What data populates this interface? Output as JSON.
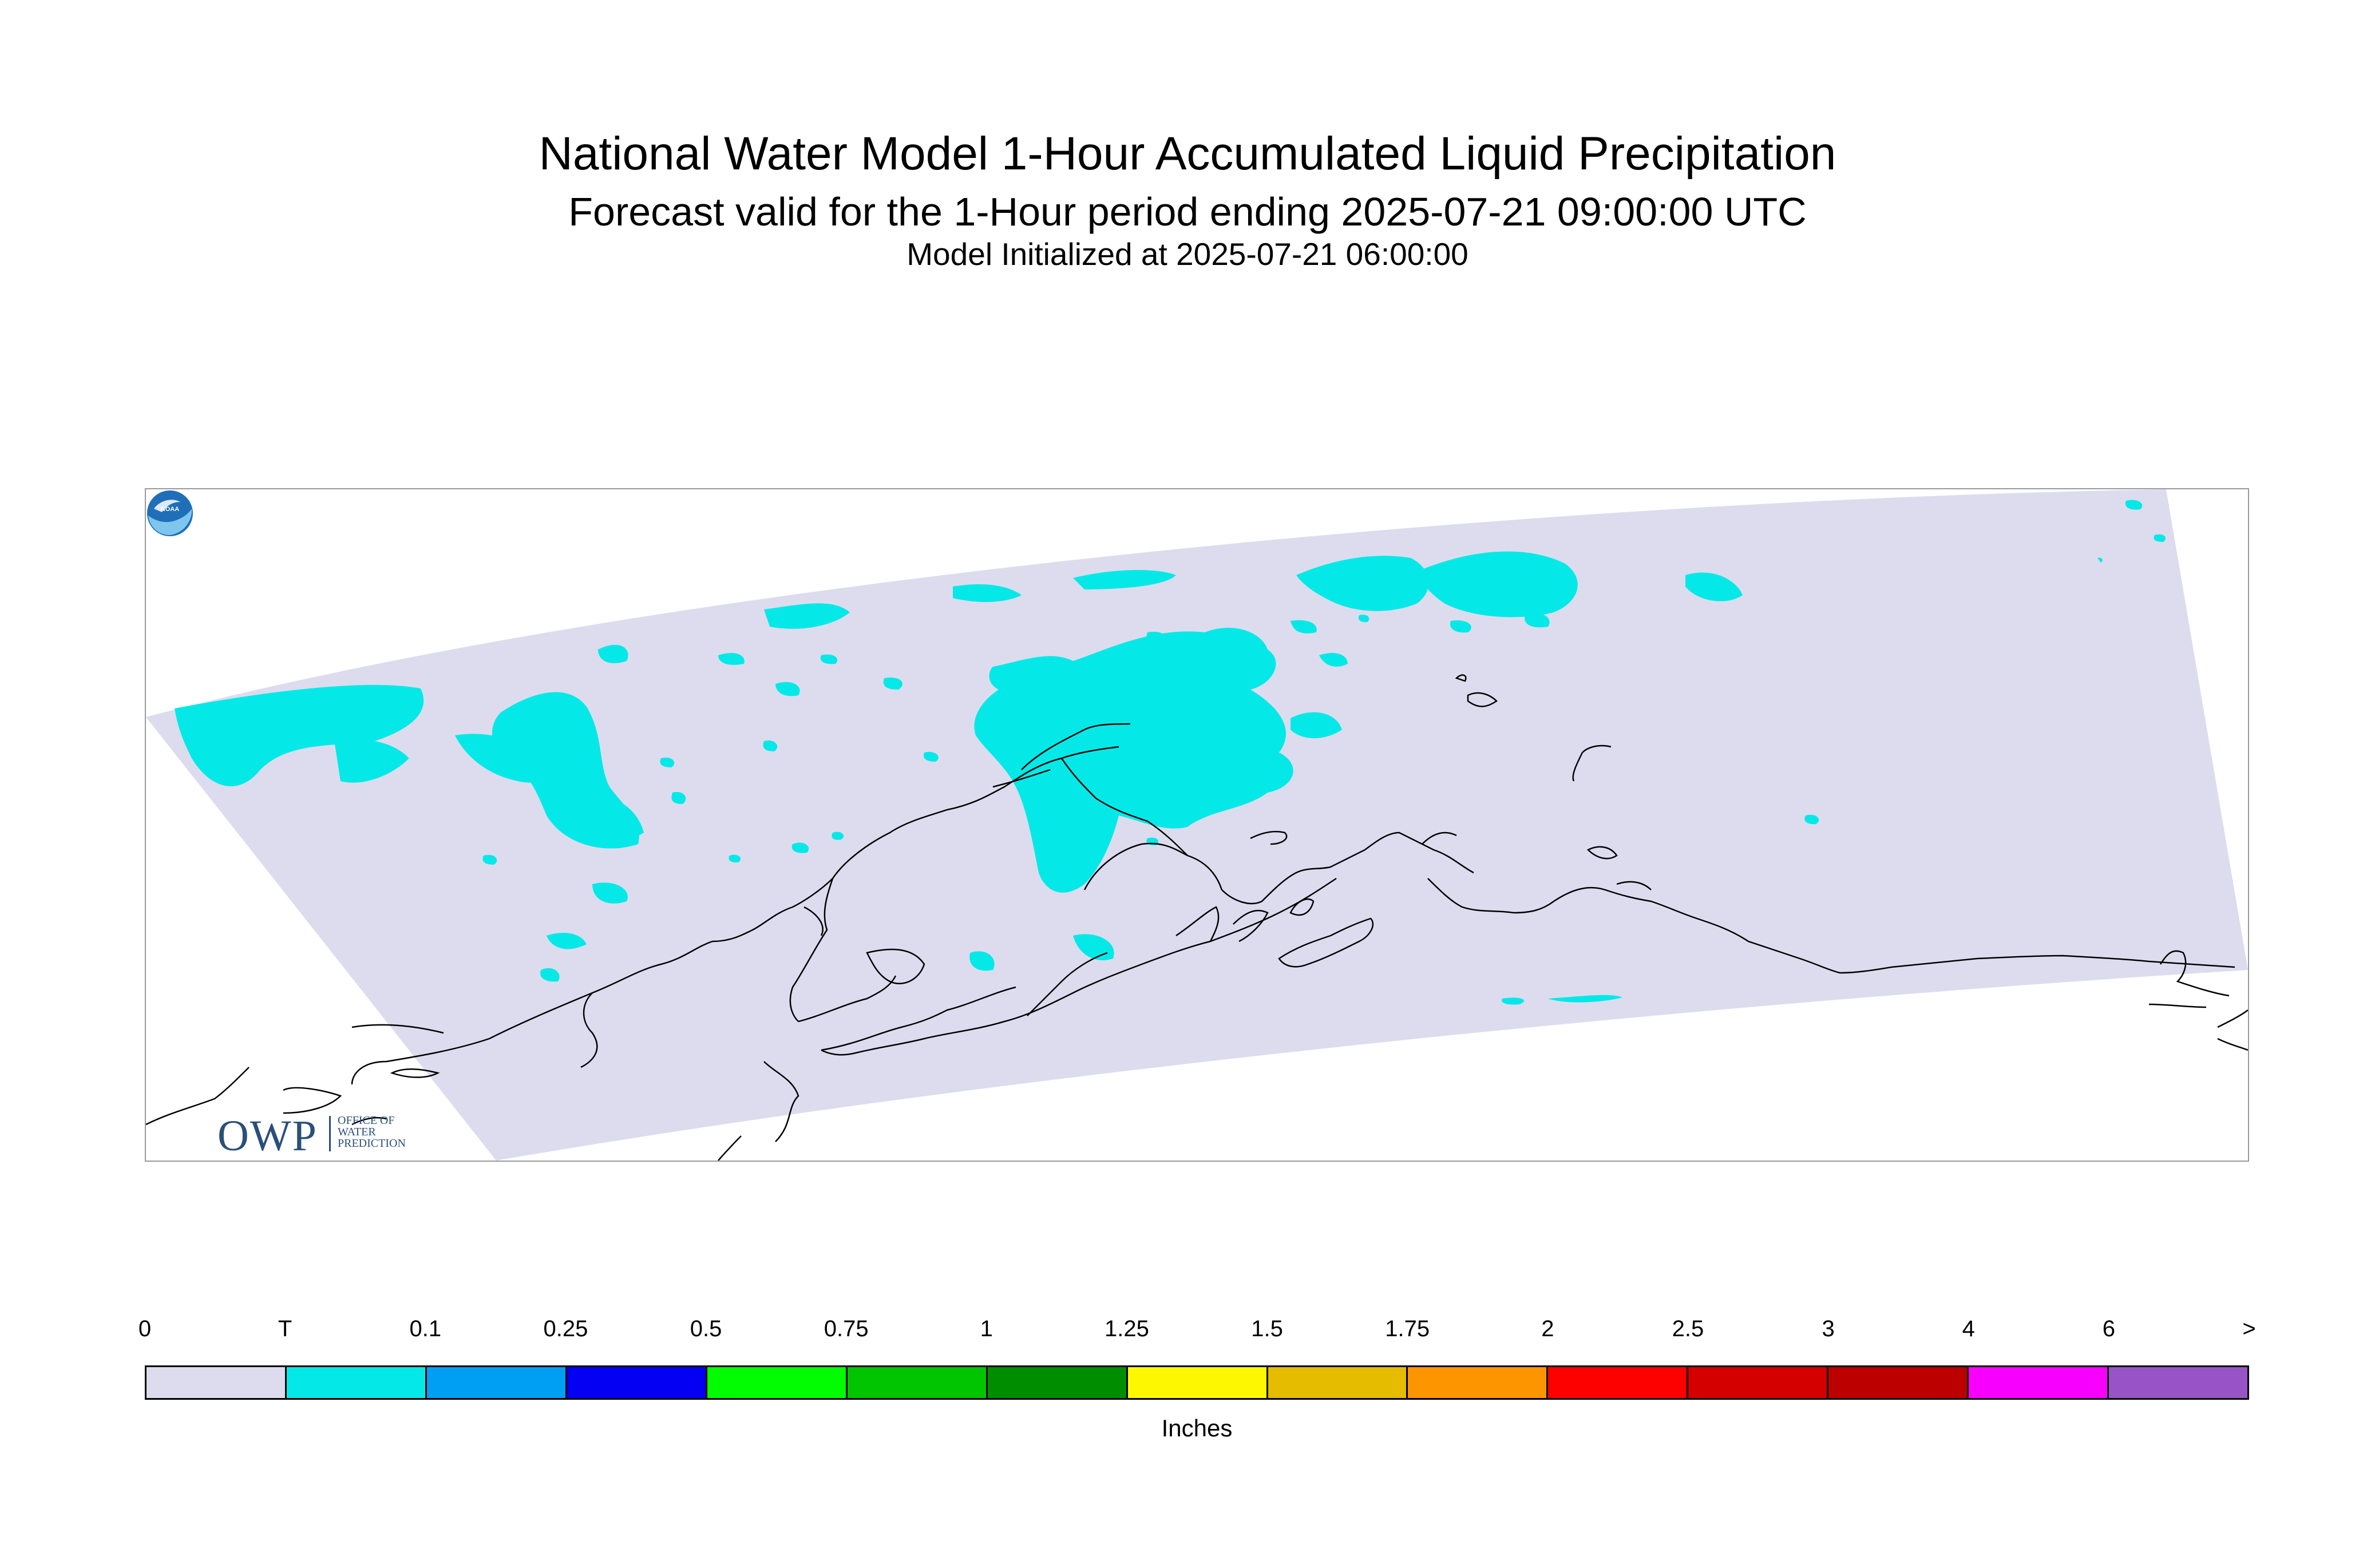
{
  "title": {
    "line1": "National Water Model 1-Hour Accumulated Liquid Precipitation",
    "line2": "Forecast valid for the 1-Hour period ending 2025-07-21 09:00:00 UTC",
    "line3": "Model Initialized at 2025-07-21 06:00:00"
  },
  "logos": {
    "owp_main": "OWP",
    "owp_text": [
      "OFFICE OF",
      "WATER",
      "PREDICTION"
    ],
    "noaa_text": "NOAA"
  },
  "legend": {
    "labels": [
      "0",
      "T",
      "0.1",
      "0.25",
      "0.5",
      "0.75",
      "1",
      "1.25",
      "1.5",
      "1.75",
      "2",
      "2.5",
      "3",
      "4",
      "6",
      ">"
    ],
    "colors": [
      "#dcdcee",
      "#04e9e7",
      "#019ff4",
      "#0300f4",
      "#02fd02",
      "#01c501",
      "#008e00",
      "#fdf802",
      "#e5bc00",
      "#fd9500",
      "#fd0000",
      "#d40000",
      "#bc0000",
      "#f800fd",
      "#9854c6"
    ],
    "units": "Inches"
  },
  "map": {
    "domain_fill": "#dcdcee",
    "precip_color": "#04e9e7",
    "coast_color": "#000000"
  }
}
